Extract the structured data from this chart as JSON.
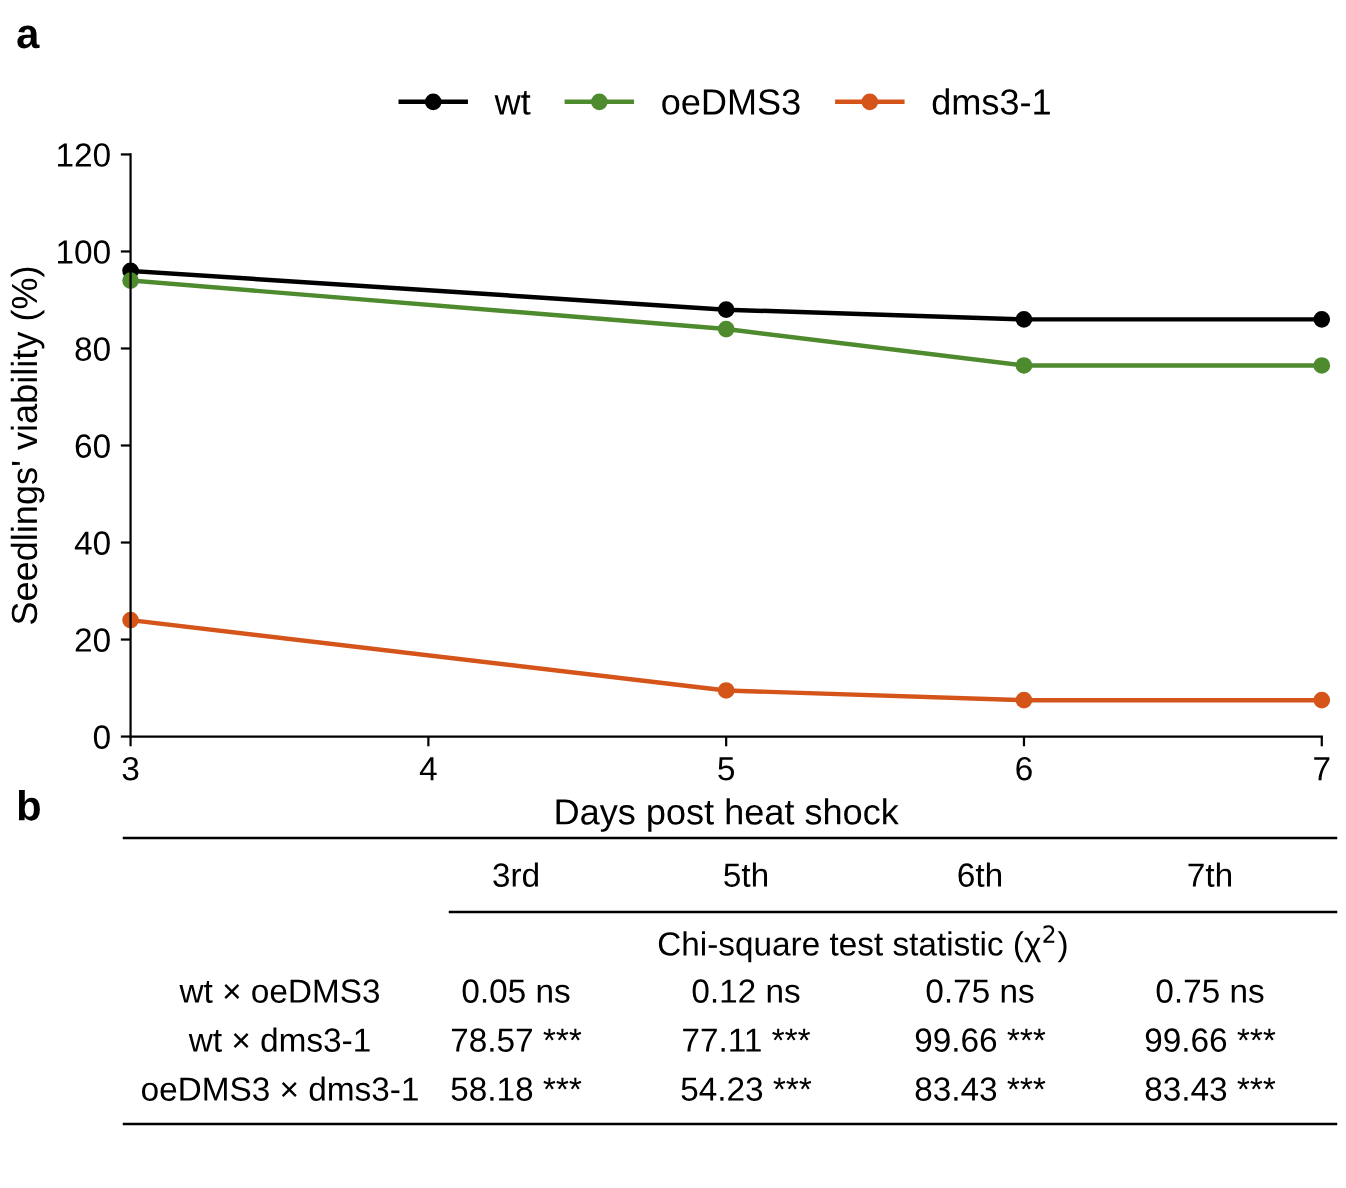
{
  "chart_data": [
    {
      "type": "line",
      "title": "a",
      "xlabel": "Days post heat shock",
      "ylabel": "Seedlings' viability (%)",
      "x": [
        3,
        5,
        6,
        7
      ],
      "series": [
        {
          "name": "wt",
          "color": "#000000",
          "values": [
            96,
            88,
            86,
            86
          ]
        },
        {
          "name": "oeDMS3",
          "color": "#4e8a2e",
          "values": [
            94,
            84,
            76.5,
            76.5
          ]
        },
        {
          "name": "dms3-1",
          "color": "#d4541a",
          "values": [
            24,
            9.5,
            7.5,
            7.5
          ]
        }
      ],
      "xlim": [
        3,
        7
      ],
      "xticks": [
        3,
        4,
        5,
        6,
        7
      ],
      "ylim": [
        0,
        120
      ],
      "yticks": [
        0,
        20,
        40,
        60,
        80,
        100,
        120
      ],
      "marker": "circle",
      "line_style": "solid",
      "grid": false,
      "legend": "top"
    },
    {
      "type": "other",
      "title": "b",
      "subtitle": "Chi-square test statistic (χ$^{2}$)",
      "categories": [
        "3rd",
        "5th",
        "6th",
        "7th"
      ],
      "y_categories": [
        "wt × oeDMS3",
        "wt × dms3-1",
        "oeDMS3 × dms3-1"
      ],
      "cell_labels": [
        [
          "0.05 ns",
          "0.12 ns",
          "0.75 ns",
          "0.75 ns"
        ],
        [
          "78.57 ***",
          "77.11 ***",
          "99.66 ***",
          "99.66 ***"
        ],
        [
          "58.18 ***",
          "54.23 ***",
          "83.43 ***",
          "83.43 ***"
        ]
      ]
    }
  ]
}
